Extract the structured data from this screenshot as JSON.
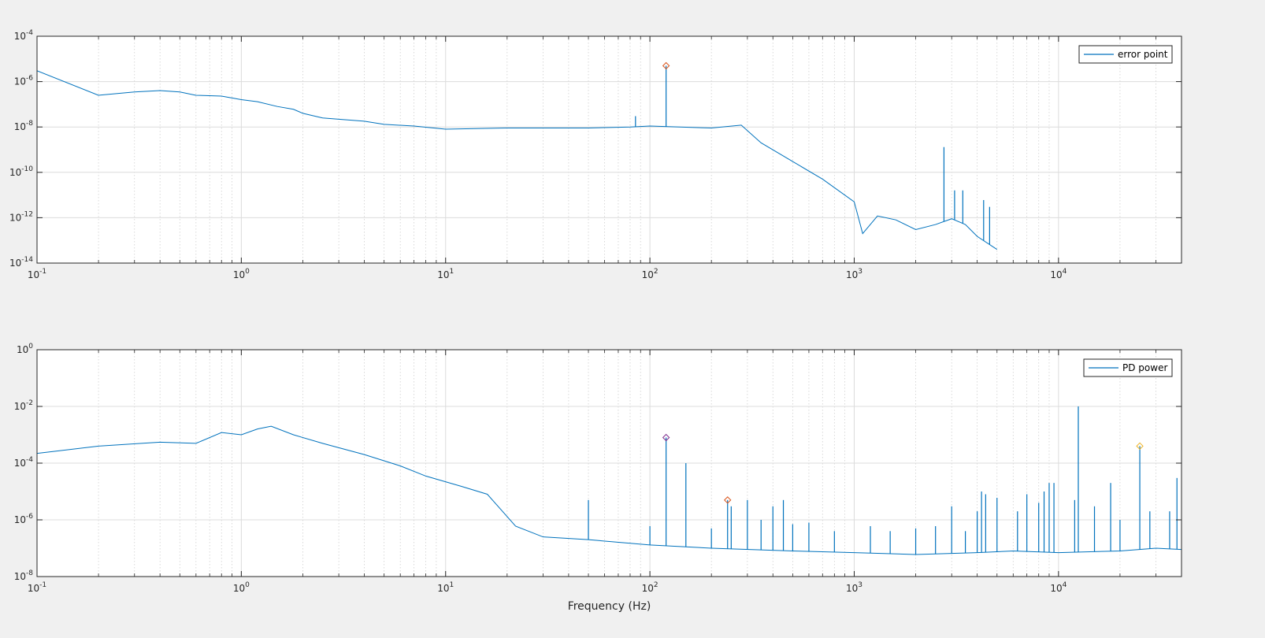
{
  "chart_data": [
    {
      "type": "line",
      "title": "",
      "xlabel": "",
      "ylabel": "",
      "xscale": "log",
      "yscale": "log",
      "xlim": [
        0.1,
        40000
      ],
      "ylim": [
        1e-14,
        0.0001
      ],
      "grid": true,
      "legend_position": "top-right",
      "x_ticks": [
        {
          "base": "10",
          "exp": "-1"
        },
        {
          "base": "10",
          "exp": "0"
        },
        {
          "base": "10",
          "exp": "1"
        },
        {
          "base": "10",
          "exp": "2"
        },
        {
          "base": "10",
          "exp": "3"
        },
        {
          "base": "10",
          "exp": "4"
        }
      ],
      "y_ticks": [
        {
          "base": "10",
          "exp": "-4"
        },
        {
          "base": "10",
          "exp": "-6"
        },
        {
          "base": "10",
          "exp": "-8"
        },
        {
          "base": "10",
          "exp": "-10"
        },
        {
          "base": "10",
          "exp": "-12"
        },
        {
          "base": "10",
          "exp": "-14"
        }
      ],
      "series": [
        {
          "name": "error point",
          "color": "#0072bd",
          "x": [
            0.1,
            0.2,
            0.3,
            0.4,
            0.5,
            0.6,
            0.8,
            1,
            1.2,
            1.5,
            1.8,
            2,
            2.5,
            3,
            4,
            5,
            7,
            10,
            20,
            50,
            80,
            100,
            200,
            280,
            350,
            500,
            700,
            1000,
            1100,
            1300,
            1600,
            2000,
            2500,
            3000,
            3500,
            4000,
            5000
          ],
          "y": [
            3e-06,
            2.5e-07,
            3.5e-07,
            4e-07,
            3.5e-07,
            2.5e-07,
            2.3e-07,
            1.6e-07,
            1.3e-07,
            8e-08,
            6e-08,
            4e-08,
            2.5e-08,
            2.2e-08,
            1.8e-08,
            1.3e-08,
            1.1e-08,
            8e-09,
            9e-09,
            9e-09,
            1e-08,
            1.1e-08,
            9e-09,
            1.2e-08,
            2e-09,
            3e-10,
            5e-11,
            5e-12,
            2e-13,
            1.2e-12,
            8e-13,
            3e-13,
            5e-13,
            9e-13,
            5e-13,
            1.5e-13,
            4e-14
          ],
          "spikes": [
            {
              "x": 85,
              "y": 3e-08
            },
            {
              "x": 120,
              "y": 5e-06
            },
            {
              "x": 2750,
              "y": 1.3e-09
            },
            {
              "x": 3100,
              "y": 1.6e-11
            },
            {
              "x": 3400,
              "y": 1.6e-11
            },
            {
              "x": 4300,
              "y": 6e-12
            },
            {
              "x": 4600,
              "y": 3e-12
            }
          ]
        }
      ],
      "markers": [
        {
          "x": 120,
          "y": 5e-06,
          "color": "#d95319"
        }
      ]
    },
    {
      "type": "line",
      "title": "",
      "xlabel": "Frequency (Hz)",
      "ylabel": "",
      "xscale": "log",
      "yscale": "log",
      "xlim": [
        0.1,
        40000
      ],
      "ylim": [
        1e-08,
        1
      ],
      "grid": true,
      "legend_position": "top-right",
      "x_ticks": [
        {
          "base": "10",
          "exp": "-1"
        },
        {
          "base": "10",
          "exp": "0"
        },
        {
          "base": "10",
          "exp": "1"
        },
        {
          "base": "10",
          "exp": "2"
        },
        {
          "base": "10",
          "exp": "3"
        },
        {
          "base": "10",
          "exp": "4"
        }
      ],
      "y_ticks": [
        {
          "base": "10",
          "exp": "0"
        },
        {
          "base": "10",
          "exp": "-2"
        },
        {
          "base": "10",
          "exp": "-4"
        },
        {
          "base": "10",
          "exp": "-6"
        },
        {
          "base": "10",
          "exp": "-8"
        }
      ],
      "series": [
        {
          "name": "PD power",
          "color": "#0072bd",
          "x": [
            0.1,
            0.2,
            0.4,
            0.6,
            0.8,
            1,
            1.2,
            1.4,
            1.8,
            2.5,
            4,
            6,
            8,
            12,
            16,
            22,
            30,
            50,
            100,
            200,
            500,
            1000,
            2000,
            4000,
            6000,
            10000,
            20000,
            30000,
            40000
          ],
          "y": [
            0.00022,
            0.0004,
            0.00055,
            0.0005,
            0.0012,
            0.001,
            0.0016,
            0.002,
            0.001,
            0.0005,
            0.0002,
            8e-05,
            3.5e-05,
            1.5e-05,
            8e-06,
            6e-07,
            2.5e-07,
            2e-07,
            1.3e-07,
            1e-07,
            8e-08,
            7e-08,
            6e-08,
            7e-08,
            8e-08,
            7e-08,
            8e-08,
            1e-07,
            9e-08
          ],
          "spikes": [
            {
              "x": 50,
              "y": 5e-06
            },
            {
              "x": 100,
              "y": 6e-07
            },
            {
              "x": 120,
              "y": 0.0008
            },
            {
              "x": 150,
              "y": 0.0001
            },
            {
              "x": 200,
              "y": 5e-07
            },
            {
              "x": 240,
              "y": 5e-06
            },
            {
              "x": 250,
              "y": 3e-06
            },
            {
              "x": 300,
              "y": 5e-06
            },
            {
              "x": 350,
              "y": 1e-06
            },
            {
              "x": 400,
              "y": 3e-06
            },
            {
              "x": 450,
              "y": 5e-06
            },
            {
              "x": 500,
              "y": 7e-07
            },
            {
              "x": 600,
              "y": 8e-07
            },
            {
              "x": 800,
              "y": 4e-07
            },
            {
              "x": 1200,
              "y": 6e-07
            },
            {
              "x": 1500,
              "y": 4e-07
            },
            {
              "x": 2000,
              "y": 5e-07
            },
            {
              "x": 2500,
              "y": 6e-07
            },
            {
              "x": 3000,
              "y": 3e-06
            },
            {
              "x": 3500,
              "y": 4e-07
            },
            {
              "x": 4000,
              "y": 2e-06
            },
            {
              "x": 4200,
              "y": 1e-05
            },
            {
              "x": 4400,
              "y": 8e-06
            },
            {
              "x": 5000,
              "y": 6e-06
            },
            {
              "x": 6300,
              "y": 2e-06
            },
            {
              "x": 7000,
              "y": 8e-06
            },
            {
              "x": 8000,
              "y": 4e-06
            },
            {
              "x": 8500,
              "y": 1e-05
            },
            {
              "x": 9000,
              "y": 2e-05
            },
            {
              "x": 9500,
              "y": 2e-05
            },
            {
              "x": 12000,
              "y": 5e-06
            },
            {
              "x": 12500,
              "y": 0.01
            },
            {
              "x": 15000,
              "y": 3e-06
            },
            {
              "x": 18000,
              "y": 2e-05
            },
            {
              "x": 20000,
              "y": 1e-06
            },
            {
              "x": 25000,
              "y": 0.0004
            },
            {
              "x": 28000,
              "y": 2e-06
            },
            {
              "x": 35000,
              "y": 2e-06
            },
            {
              "x": 38000,
              "y": 3e-05
            }
          ]
        }
      ],
      "markers": [
        {
          "x": 120,
          "y": 0.0008,
          "color": "#7e2f8e"
        },
        {
          "x": 240,
          "y": 5e-06,
          "color": "#d95319"
        },
        {
          "x": 25000,
          "y": 0.0004,
          "color": "#edb120"
        }
      ]
    }
  ]
}
